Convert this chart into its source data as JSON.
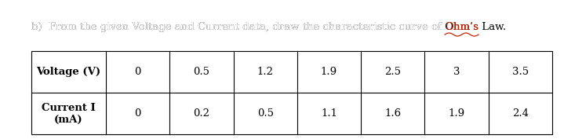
{
  "title_prefix": "b)  From the given Voltage and Current data, draw the characteristic curve of ",
  "title_ohm": "Ohm’s",
  "title_suffix": " Law.",
  "row1_label": "Voltage (V)",
  "row2_label_line1": "Current I",
  "row2_label_line2": "(mA)",
  "row1_data": [
    "0",
    "0.5",
    "1.2",
    "1.9",
    "2.5",
    "3",
    "3.5"
  ],
  "row2_data": [
    "0",
    "0.2",
    "0.5",
    "1.1",
    "1.6",
    "1.9",
    "2.4"
  ],
  "background_color": "#ffffff",
  "text_color": "#000000",
  "border_color": "#000000",
  "highlight_color": "#cc2200",
  "font_size_title": 9.5,
  "font_size_table": 9.5,
  "fig_width": 7.19,
  "fig_height": 1.77,
  "dpi": 100
}
